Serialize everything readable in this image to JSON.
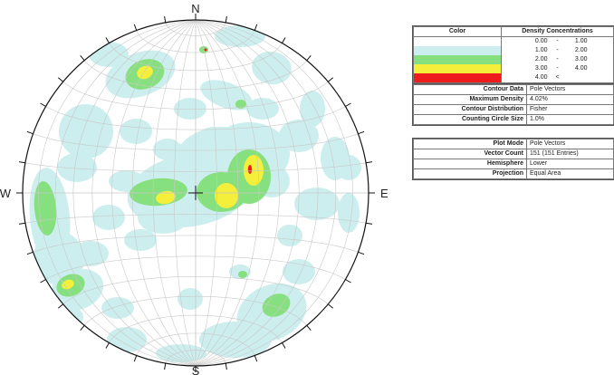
{
  "compass": {
    "north": "N",
    "south": "S",
    "east": "E",
    "west": "W"
  },
  "colors": {
    "background": "#ffffff",
    "density_0_1": "#ffffff",
    "density_1_2": "#cdeeee",
    "density_2_3": "#86e07f",
    "density_3_4": "#f4ef3a",
    "density_4_plus": "#ee1c1c",
    "grid": "#c8c8c8",
    "outline": "#111111"
  },
  "legend": {
    "color_header": "Color",
    "density_header": "Density Concentrations",
    "ranges": [
      {
        "low": "0.00",
        "sep": "-",
        "high": "1.00"
      },
      {
        "low": "1.00",
        "sep": "-",
        "high": "2.00"
      },
      {
        "low": "2.00",
        "sep": "-",
        "high": "3.00"
      },
      {
        "low": "3.00",
        "sep": "-",
        "high": "4.00"
      },
      {
        "low": "4.00",
        "sep": "<",
        "high": ""
      }
    ]
  },
  "settings": {
    "contour_data_label": "Contour Data",
    "contour_data_value": "Pole Vectors",
    "max_density_label": "Maximum Density",
    "max_density_value": "4.02%",
    "contour_distribution_label": "Contour Distribution",
    "contour_distribution_value": "Fisher",
    "counting_circle_label": "Counting Circle Size",
    "counting_circle_value": "1.0%"
  },
  "plot": {
    "plot_mode_label": "Plot Mode",
    "plot_mode_value": "Pole Vectors",
    "vector_count_label": "Vector Count",
    "vector_count_value": "151 (151 Entries)",
    "hemisphere_label": "Hemisphere",
    "hemisphere_value": "Lower",
    "projection_label": "Projection",
    "projection_value": "Equal Area"
  }
}
